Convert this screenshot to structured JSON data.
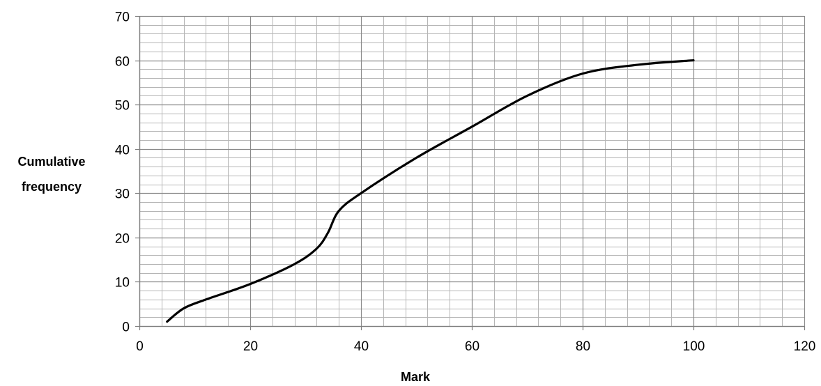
{
  "chart_data": {
    "type": "line",
    "title": "",
    "xlabel": "Mark",
    "ylabel_lines": [
      "Cumulative",
      "frequency"
    ],
    "xlim": [
      0,
      120
    ],
    "ylim": [
      0,
      70
    ],
    "x_major_step": 20,
    "y_major_step": 10,
    "x_minor_step": 4,
    "y_minor_step": 2,
    "x_tick_labels": [
      "0",
      "20",
      "40",
      "60",
      "80",
      "100",
      "120"
    ],
    "y_tick_labels": [
      "0",
      "10",
      "20",
      "30",
      "40",
      "50",
      "60",
      "70"
    ],
    "grid": true,
    "legend": "none",
    "series": [
      {
        "x": [
          5,
          8,
          12,
          20,
          28,
          32,
          34,
          36,
          40,
          50,
          60,
          70,
          80,
          90,
          100
        ],
        "y": [
          1,
          4,
          6,
          9.5,
          14,
          17.5,
          21,
          26,
          30,
          38,
          45,
          52,
          57,
          59,
          60
        ],
        "color": "#000000"
      }
    ]
  }
}
